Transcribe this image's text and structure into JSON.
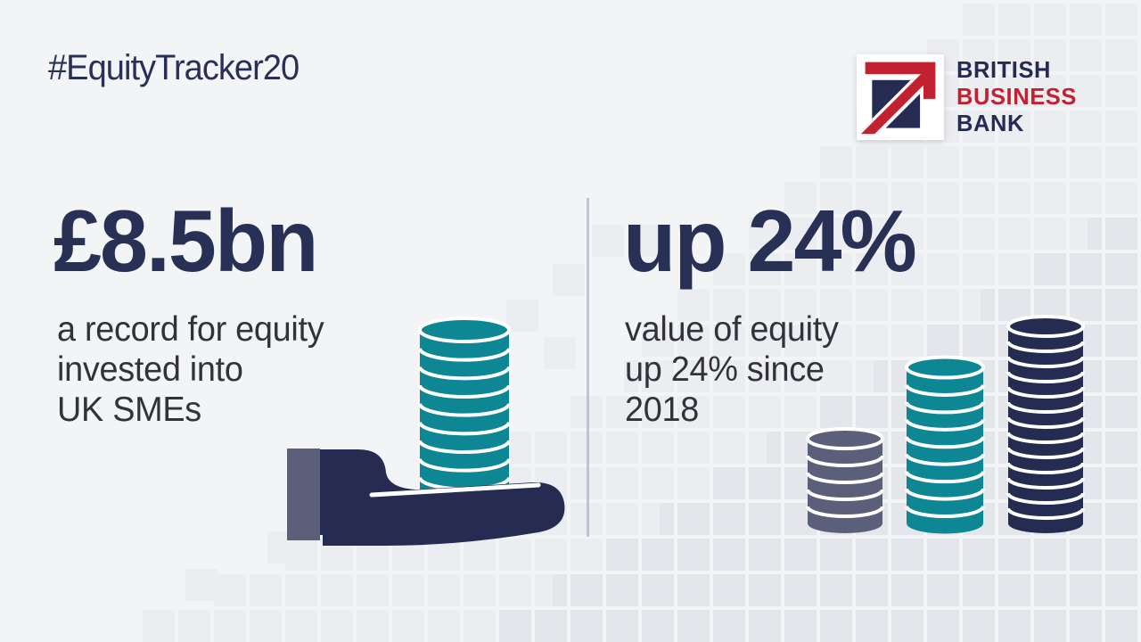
{
  "header": {
    "hashtag": "#EquityTracker20"
  },
  "logo": {
    "lines": [
      "BRITISH",
      "BUSINESS",
      "BANK"
    ]
  },
  "left_panel": {
    "stat": "£8.5bn",
    "lines": [
      "a record for equity",
      "invested into",
      "UK SMEs"
    ]
  },
  "right_panel": {
    "stat": "up 24%",
    "lines": [
      "value of equity",
      "up 24% since",
      "2018"
    ]
  },
  "chart_data": {
    "type": "pictogram",
    "title": "Equity Tracker 2020 headline figures",
    "annotations": [
      "£8.5bn — a record for equity invested into UK SMEs",
      "up 24% — value of equity up 24% since 2018"
    ],
    "hand_stack": {
      "coins": 10,
      "color_key": "teal"
    },
    "stacks": [
      {
        "name": "small",
        "coins": 6,
        "color_key": "grayPurple"
      },
      {
        "name": "medium",
        "coins": 10,
        "color_key": "teal"
      },
      {
        "name": "large",
        "coins": 14,
        "color_key": "navy"
      }
    ]
  },
  "colors": {
    "bg": "#f3f4f6",
    "mosaicFaint": "#ecedf1",
    "mosaicStrong": "#e5e6eb",
    "headlineNavy": "#293056",
    "bodyText": "#32323a",
    "navy": "#262c51",
    "teal": "#0e8795",
    "grayPurple": "#5c5f79",
    "logoNavy": "#262b52",
    "logoRed": "#c22130",
    "divider": "#b7bbcb"
  }
}
